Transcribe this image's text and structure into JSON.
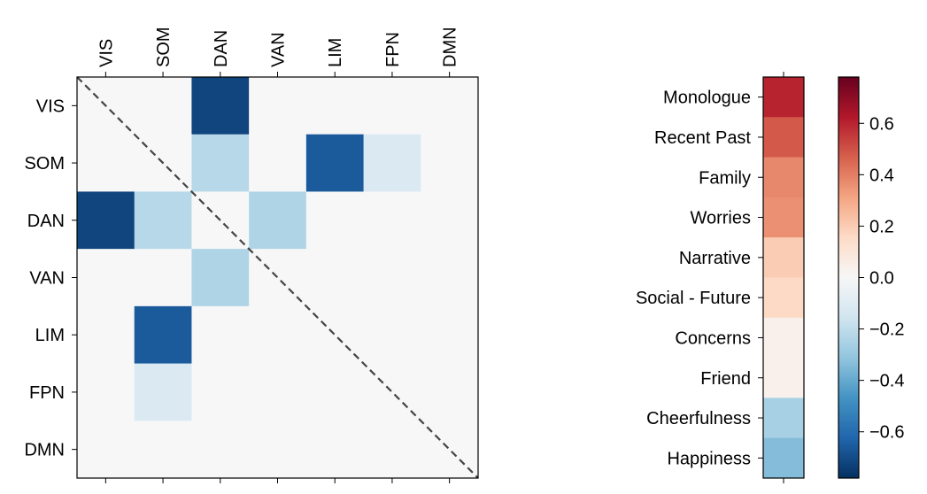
{
  "chart_data": [
    {
      "type": "heatmap",
      "networks": [
        "VIS",
        "SOM",
        "DAN",
        "VAN",
        "LIM",
        "FPN",
        "DMN"
      ],
      "matrix": [
        [
          0,
          0,
          -0.72,
          0,
          0,
          0,
          0
        ],
        [
          0,
          0,
          -0.22,
          0,
          -0.66,
          -0.12,
          0
        ],
        [
          -0.72,
          -0.22,
          0,
          -0.24,
          0,
          0,
          0
        ],
        [
          0,
          0,
          -0.24,
          0,
          0,
          0,
          0
        ],
        [
          0,
          -0.66,
          0,
          0,
          0,
          0,
          0
        ],
        [
          0,
          -0.12,
          0,
          0,
          0,
          0,
          0
        ],
        [
          0,
          0,
          0,
          0,
          0,
          0,
          0
        ]
      ],
      "diagonal_line": "dashed",
      "grid": false
    },
    {
      "type": "heatmap",
      "categories": [
        "Monologue",
        "Recent Past",
        "Family",
        "Worries",
        "Narrative",
        "Social - Future",
        "Concerns",
        "Friend",
        "Cheerfulness",
        "Happiness"
      ],
      "values": [
        0.6,
        0.48,
        0.38,
        0.36,
        0.2,
        0.16,
        0.04,
        0.04,
        -0.26,
        -0.34
      ]
    },
    {
      "type": "colorbar",
      "colormap": "RdBu_r",
      "vmin": -0.78,
      "vmax": 0.78,
      "ticks": [
        -0.6,
        -0.4,
        -0.2,
        0.0,
        0.2,
        0.4,
        0.6
      ],
      "tick_labels": [
        "−0.6",
        "−0.4",
        "−0.2",
        "0.0",
        "0.2",
        "0.4",
        "0.6"
      ]
    }
  ]
}
